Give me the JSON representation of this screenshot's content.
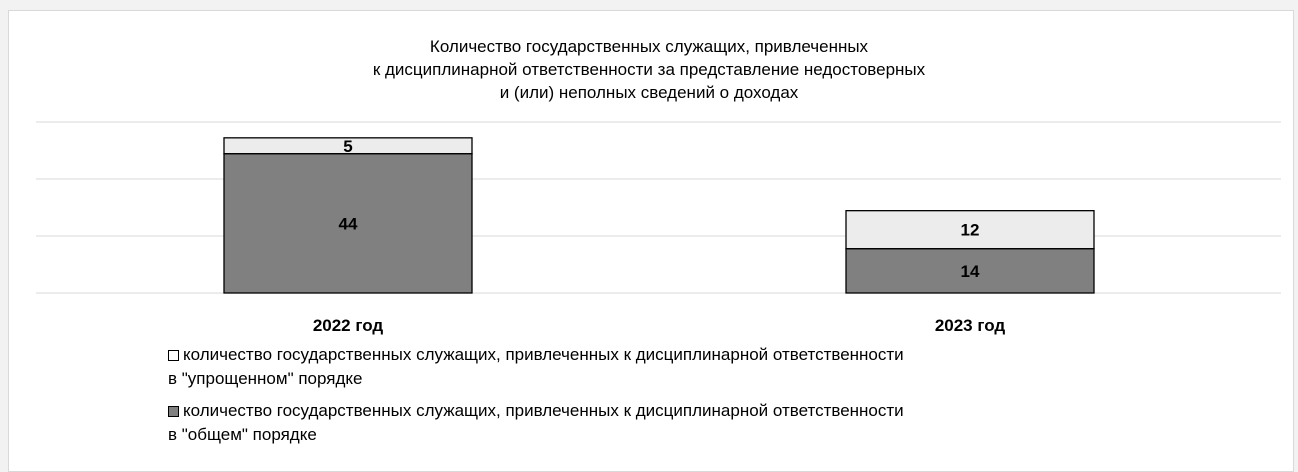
{
  "chart_data": {
    "type": "bar",
    "stacked": true,
    "title_lines": [
      "Количество государственных служащих, привлеченных",
      "к дисциплинарной ответственности за представление недостоверных",
      "и (или) неполных сведений о доходах"
    ],
    "categories": [
      "2022 год",
      "2023 год"
    ],
    "series": [
      {
        "name_lines": [
          "количество государственных  служащих, привлеченных к дисциплинарной ответственности",
          "в \"общем\" порядке"
        ],
        "values": [
          44,
          14
        ],
        "color": "#808080"
      },
      {
        "name_lines": [
          "количество государственных служащих, привлеченных к дисциплинарной ответственности",
          "в \"упрощенном\" порядке"
        ],
        "values": [
          5,
          12
        ],
        "color": "#ececec"
      }
    ],
    "ylim": [
      0,
      54
    ],
    "grid": true,
    "legend_position": "bottom",
    "show_y_axis": false
  }
}
